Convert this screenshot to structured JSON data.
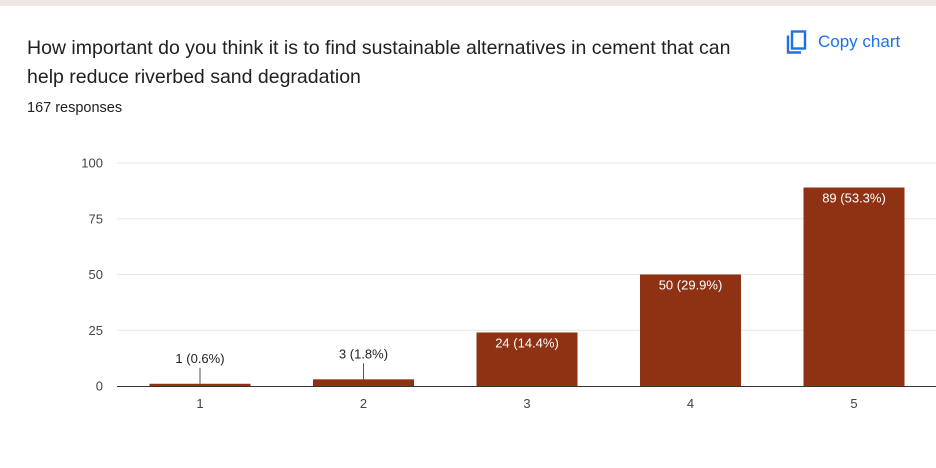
{
  "question": {
    "title": "How important do you think it is to find sustainable alternatives in cement that can help reduce riverbed sand degradation",
    "responses": "167 responses"
  },
  "toolbar": {
    "copy_label": "Copy chart",
    "copy_icon": "copy-icon",
    "accent_color": "#1a73e8"
  },
  "chart_data": {
    "type": "bar",
    "categories": [
      "1",
      "2",
      "3",
      "4",
      "5"
    ],
    "values": [
      1,
      3,
      24,
      50,
      89
    ],
    "data_labels": [
      "1 (0.6%)",
      "3 (1.8%)",
      "24 (14.4%)",
      "50 (29.9%)",
      "89 (53.3%)"
    ],
    "yticks": [
      0,
      25,
      50,
      75,
      100
    ],
    "ylim": [
      0,
      100
    ],
    "grid": true,
    "bar_color": "#8f3214"
  }
}
